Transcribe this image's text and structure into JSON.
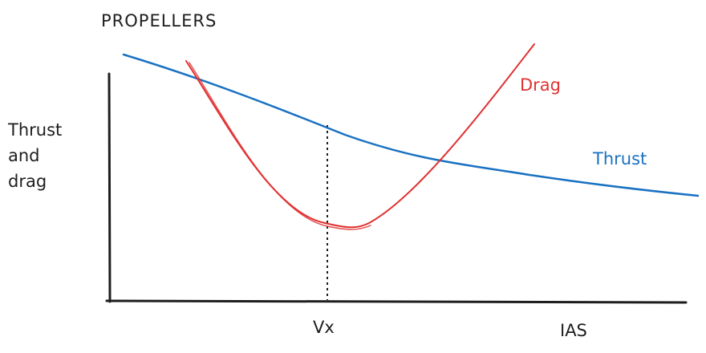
{
  "diagram": {
    "title": "PROPELLERS",
    "y_axis_label_lines": [
      "Thrust",
      "and",
      "drag"
    ],
    "x_marker_label": "Vx",
    "x_axis_label": "IAS",
    "curves": [
      {
        "name": "Drag",
        "color": "#e03131"
      },
      {
        "name": "Thrust",
        "color": "#1971c2"
      }
    ],
    "axis_color": "#1e1e1e"
  }
}
